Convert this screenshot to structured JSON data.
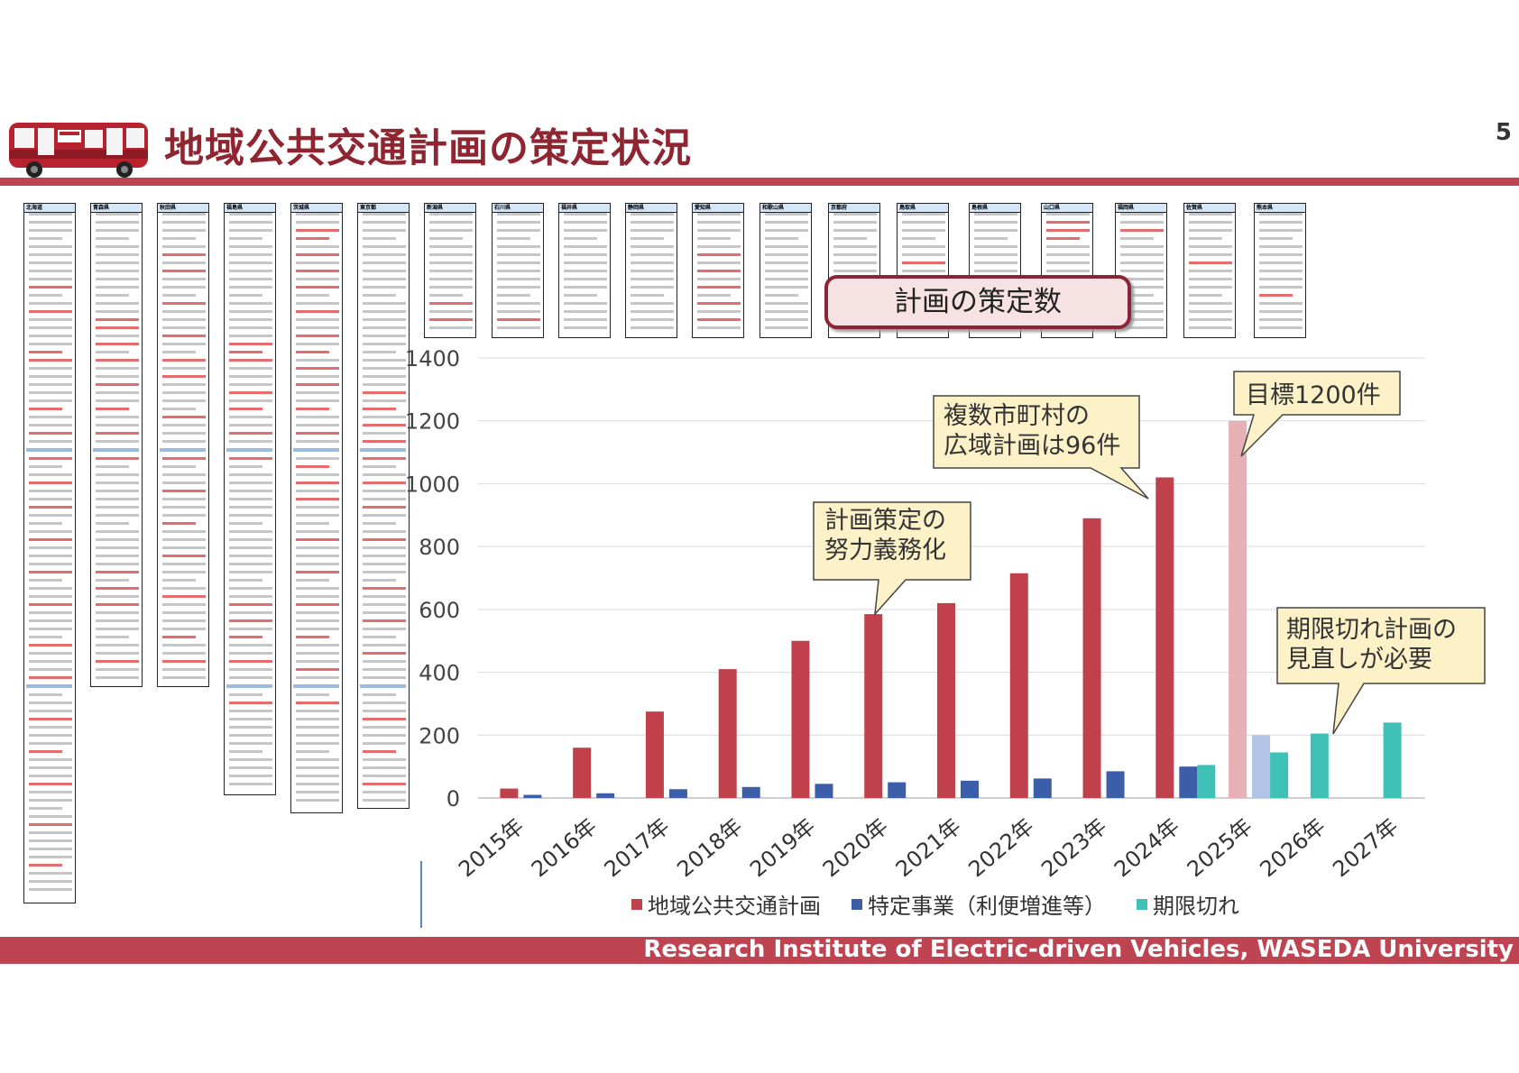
{
  "slide": {
    "title": "地域公共交通計画の策定状況",
    "page_number": "5",
    "footer": "Research Institute of Electric-driven Vehicles, WASEDA University"
  },
  "document_columns": [
    {
      "head": "北海道",
      "red": [
        9,
        12,
        17,
        18,
        24,
        27,
        30,
        33,
        36,
        40,
        44,
        48,
        53,
        57,
        62,
        66,
        70,
        75,
        80
      ]
    },
    {
      "head": "青森県",
      "red": [
        13,
        14,
        16,
        18,
        21,
        24,
        27,
        30,
        44,
        46,
        48,
        55,
        58,
        66
      ]
    },
    {
      "head": "秋田県",
      "red": [
        5,
        7,
        11,
        15,
        18,
        20,
        25,
        30,
        34,
        38,
        42,
        47,
        52,
        55
      ]
    },
    {
      "head": "福島県",
      "red": [
        16,
        17,
        18,
        22,
        24,
        27,
        30,
        48,
        50,
        52,
        55,
        58,
        60
      ]
    },
    {
      "head": "茨城県",
      "red": [
        2,
        3,
        5,
        7,
        9,
        12,
        15,
        17,
        19,
        21,
        24,
        27,
        29,
        31,
        33,
        35,
        40,
        44,
        48,
        52,
        56,
        60
      ]
    },
    {
      "head": "東京都",
      "red": [
        22,
        24,
        26,
        28,
        30,
        33,
        36,
        40,
        46,
        50,
        54,
        58,
        62,
        66,
        70
      ]
    },
    {
      "head": "新潟県",
      "red": [
        11,
        13
      ]
    },
    {
      "head": "石川県",
      "red": [
        13
      ]
    },
    {
      "head": "福井県",
      "red": []
    },
    {
      "head": "静岡県",
      "red": []
    },
    {
      "head": "愛知県",
      "red": [
        5,
        7,
        9,
        11,
        13
      ]
    },
    {
      "head": "和歌山県",
      "red": []
    },
    {
      "head": "京都府",
      "red": []
    },
    {
      "head": "鳥取県",
      "red": [
        6,
        8
      ]
    },
    {
      "head": "島根県",
      "red": []
    },
    {
      "head": "山口県",
      "red": [
        1,
        2,
        3
      ]
    },
    {
      "head": "福岡県",
      "red": [
        2
      ]
    },
    {
      "head": "佐賀県",
      "red": [
        6
      ]
    },
    {
      "head": "熊本県",
      "red": [
        10
      ]
    }
  ],
  "callouts": {
    "plan_count": "計画の策定数",
    "effort_duty": [
      "計画策定の",
      "努力義務化"
    ],
    "wide_area": [
      "複数市町村の",
      "広域計画は96件"
    ],
    "target": "目標1200件",
    "expired": [
      "期限切れ計画の",
      "見直しが必要"
    ]
  },
  "chart_data": {
    "type": "bar",
    "title": "",
    "xlabel": "",
    "ylabel": "",
    "categories": [
      "2015年",
      "2016年",
      "2017年",
      "2018年",
      "2019年",
      "2020年",
      "2021年",
      "2022年",
      "2023年",
      "2024年",
      "2025年",
      "2026年",
      "2027年"
    ],
    "ylim": [
      0,
      1400
    ],
    "yticks": [
      0,
      200,
      400,
      600,
      800,
      1000,
      1200,
      1400
    ],
    "grid": true,
    "legend_position": "bottom",
    "series": [
      {
        "name": "地域公共交通計画",
        "color": "#c0404c",
        "values": [
          30,
          160,
          275,
          410,
          500,
          585,
          620,
          715,
          890,
          1020,
          1200,
          null,
          null
        ],
        "faded_index": 10,
        "faded_color": "#e6b0b6"
      },
      {
        "name": "特定事業（利便増進等）",
        "color": "#3c5ea8",
        "values": [
          10,
          15,
          28,
          35,
          45,
          50,
          55,
          62,
          85,
          100,
          200,
          null,
          null
        ],
        "faded_index": 10,
        "faded_color": "#b1c4e6"
      },
      {
        "name": "期限切れ",
        "color": "#3fc1b7",
        "values": [
          null,
          null,
          null,
          null,
          null,
          null,
          null,
          null,
          null,
          105,
          145,
          205,
          240
        ]
      }
    ]
  }
}
